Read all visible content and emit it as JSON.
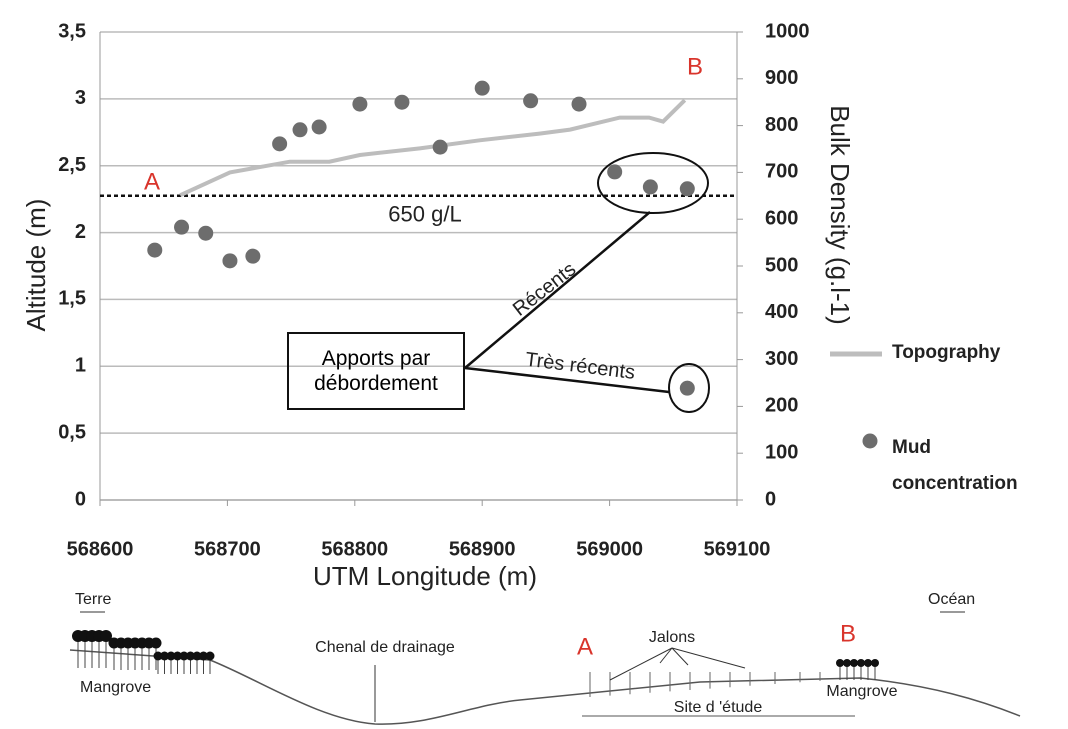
{
  "chart_data": {
    "type": "combo",
    "xlabel": "UTM Longitude (m)",
    "ylabel": "Altitude (m)",
    "y2label": "Bulk Density (g.l-1)",
    "xlim": [
      568600,
      569100
    ],
    "xticks": [
      568600,
      568700,
      568800,
      568900,
      569000,
      569100
    ],
    "ylim": [
      0,
      3.5
    ],
    "yticks": [
      0,
      {
        "value": 0.5,
        "label": "0,5"
      },
      1,
      {
        "value": 1.5,
        "label": "1,5"
      },
      2,
      {
        "value": 2.5,
        "label": "2,5"
      },
      3,
      {
        "value": 3.5,
        "label": "3,5"
      }
    ],
    "y2lim": [
      0,
      1000
    ],
    "y2ticks": [
      0,
      100,
      200,
      300,
      400,
      500,
      600,
      700,
      800,
      900,
      1000
    ],
    "grid": true,
    "legend": "right",
    "series": [
      {
        "name": "Topography",
        "type": "line",
        "color": "#bdbdbd",
        "axis": "y",
        "x": [
          568663,
          568702,
          568749,
          568780,
          568804,
          568851,
          568898,
          568945,
          568969,
          569008,
          569031,
          569042,
          569059
        ],
        "values": [
          2.28,
          2.45,
          2.53,
          2.53,
          2.58,
          2.63,
          2.69,
          2.74,
          2.77,
          2.86,
          2.86,
          2.83,
          2.99
        ]
      },
      {
        "name": "Mud concentration",
        "type": "scatter",
        "color": "#6d6d6d",
        "axis": "y2",
        "x": [
          568643,
          568664,
          568683,
          568702,
          568720,
          568741,
          568757,
          568772,
          568804,
          568837,
          568867,
          568900,
          568938,
          568976,
          569004,
          569032,
          569061,
          569061
        ],
        "values": [
          534,
          583,
          570,
          511,
          521,
          761,
          791,
          797,
          846,
          850,
          754,
          880,
          853,
          846,
          701,
          669,
          665,
          239
        ]
      }
    ],
    "reference_line": {
      "value": 650,
      "axis": "y2",
      "label": "650 g/L"
    },
    "annotations": {
      "point_a": "A",
      "point_b": "B",
      "recent": "Récents",
      "very_recent": "Très récents",
      "box": "Apports par débordement"
    }
  },
  "cross_section": {
    "left": "Terre",
    "right": "Océan",
    "mangrove_left": "Mangrove",
    "channel": "Chenal de drainage",
    "point_a": "A",
    "stakes": "Jalons",
    "point_b": "B",
    "mangrove_right": "Mangrove",
    "study_site": "Site d 'étude"
  }
}
